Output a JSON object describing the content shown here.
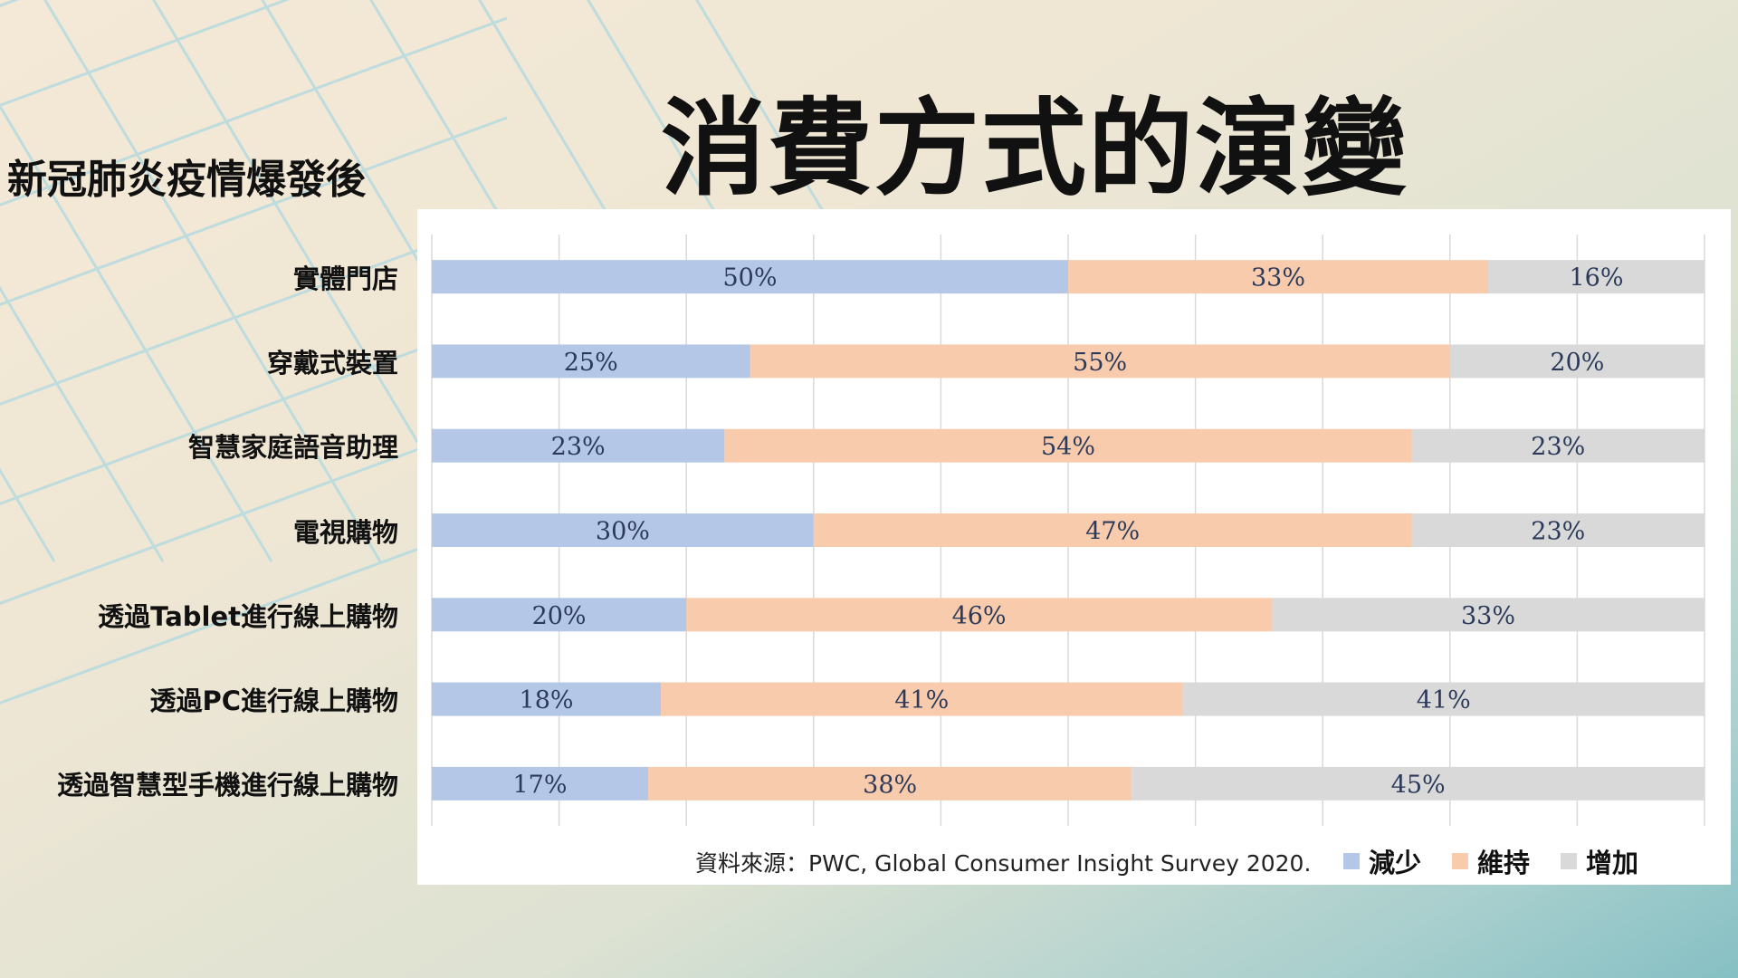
{
  "title": "消費方式的演變",
  "subtitle": "新冠肺炎疫情爆發後",
  "source": "資料來源：PWC, Global Consumer Insight Survey 2020.",
  "colors": {
    "decrease": "#b4c7e7",
    "maintain": "#f8cbad",
    "increase": "#d9d9d9"
  },
  "chart_data": {
    "type": "bar",
    "orientation": "horizontal",
    "stacked": true,
    "xlim": [
      0,
      100
    ],
    "grid": true,
    "legend_position": "bottom-right",
    "categories": [
      "實體門店",
      "穿戴式裝置",
      "智慧家庭語音助理",
      "電視購物",
      "透過Tablet進行線上購物",
      "透過PC進行線上購物",
      "透過智慧型手機進行線上購物"
    ],
    "series": [
      {
        "name": "減少",
        "values": [
          50,
          25,
          23,
          30,
          20,
          18,
          17
        ],
        "labels": [
          "50%",
          "25%",
          "23%",
          "30%",
          "20%",
          "18%",
          "17%"
        ]
      },
      {
        "name": "維持",
        "values": [
          33,
          55,
          54,
          47,
          46,
          41,
          38
        ],
        "labels": [
          "33%",
          "55%",
          "54%",
          "47%",
          "46%",
          "41%",
          "38%"
        ]
      },
      {
        "name": "增加",
        "values": [
          16,
          20,
          23,
          23,
          33,
          41,
          45
        ],
        "labels": [
          "16%",
          "20%",
          "23%",
          "23%",
          "33%",
          "41%",
          "45%"
        ]
      }
    ]
  }
}
